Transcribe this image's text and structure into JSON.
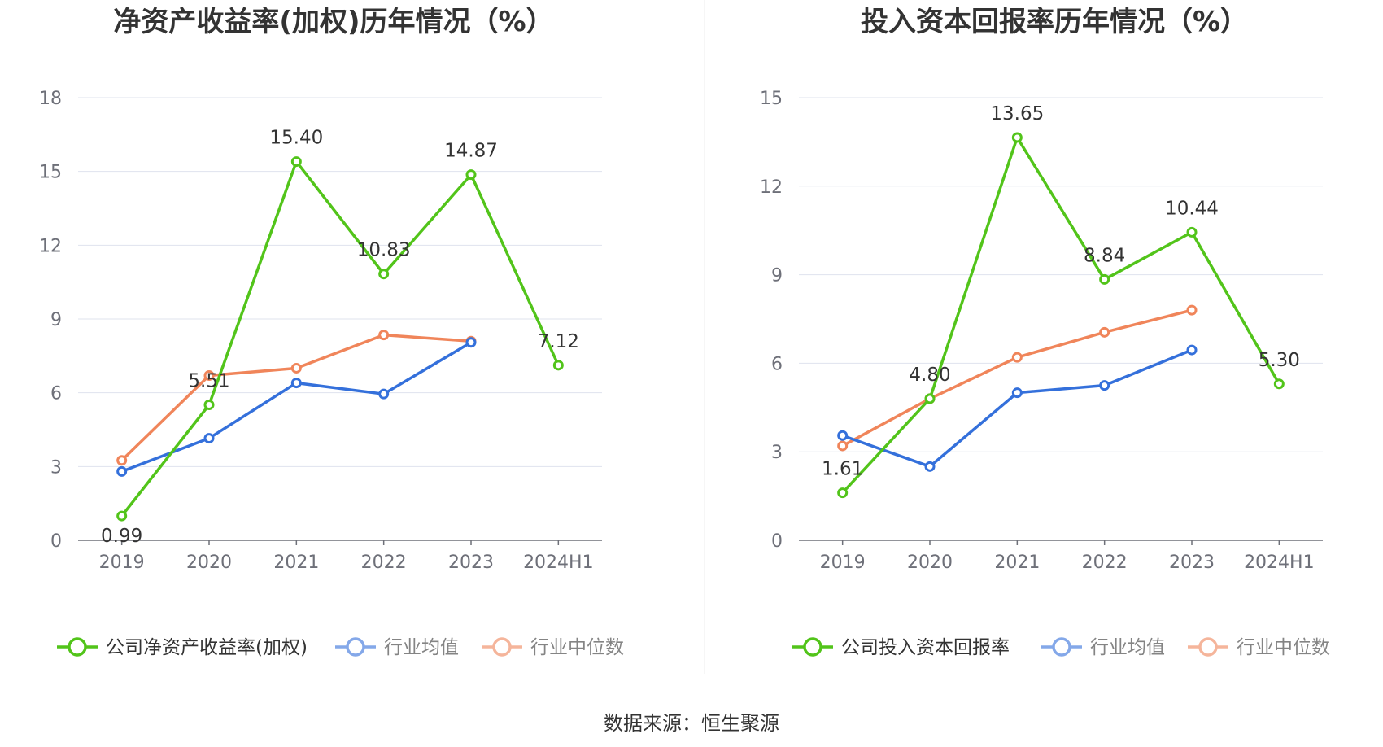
{
  "source_text": "数据来源：恒生聚源",
  "colors": {
    "company": "#52c41a",
    "avg": "#3470db",
    "median": "#f0855a",
    "grid": "#dfe3ee",
    "axis": "#6e7079"
  },
  "chart_data": [
    {
      "type": "line",
      "title": "净资产收益率(加权)历年情况（%）",
      "categories": [
        "2019",
        "2020",
        "2021",
        "2022",
        "2023",
        "2024H1"
      ],
      "ylim": [
        0,
        18
      ],
      "yticks": [
        "0",
        "3",
        "6",
        "9",
        "12",
        "15",
        "18"
      ],
      "grid": true,
      "legend_position": "bottom",
      "series": [
        {
          "name": "公司净资产收益率(加权)",
          "values": [
            0.99,
            5.51,
            15.4,
            10.83,
            14.87,
            7.12
          ],
          "labels": [
            "0.99",
            "5.51",
            "15.40",
            "10.83",
            "14.87",
            "7.12"
          ]
        },
        {
          "name": "行业均值",
          "values": [
            2.8,
            4.15,
            6.4,
            5.95,
            8.05,
            null
          ]
        },
        {
          "name": "行业中位数",
          "values": [
            3.25,
            6.7,
            7.0,
            8.35,
            8.1,
            null
          ]
        }
      ]
    },
    {
      "type": "line",
      "title": "投入资本回报率历年情况（%）",
      "categories": [
        "2019",
        "2020",
        "2021",
        "2022",
        "2023",
        "2024H1"
      ],
      "ylim": [
        0,
        15
      ],
      "yticks": [
        "0",
        "3",
        "6",
        "9",
        "12",
        "15"
      ],
      "grid": true,
      "legend_position": "bottom",
      "series": [
        {
          "name": "公司投入资本回报率",
          "values": [
            1.61,
            4.8,
            13.65,
            8.84,
            10.44,
            5.3
          ],
          "labels": [
            "1.61",
            "4.80",
            "13.65",
            "8.84",
            "10.44",
            "5.30"
          ]
        },
        {
          "name": "行业均值",
          "values": [
            3.55,
            2.5,
            5.0,
            5.25,
            6.45,
            null
          ]
        },
        {
          "name": "行业中位数",
          "values": [
            3.2,
            4.8,
            6.2,
            7.05,
            7.8,
            null
          ]
        }
      ]
    }
  ]
}
